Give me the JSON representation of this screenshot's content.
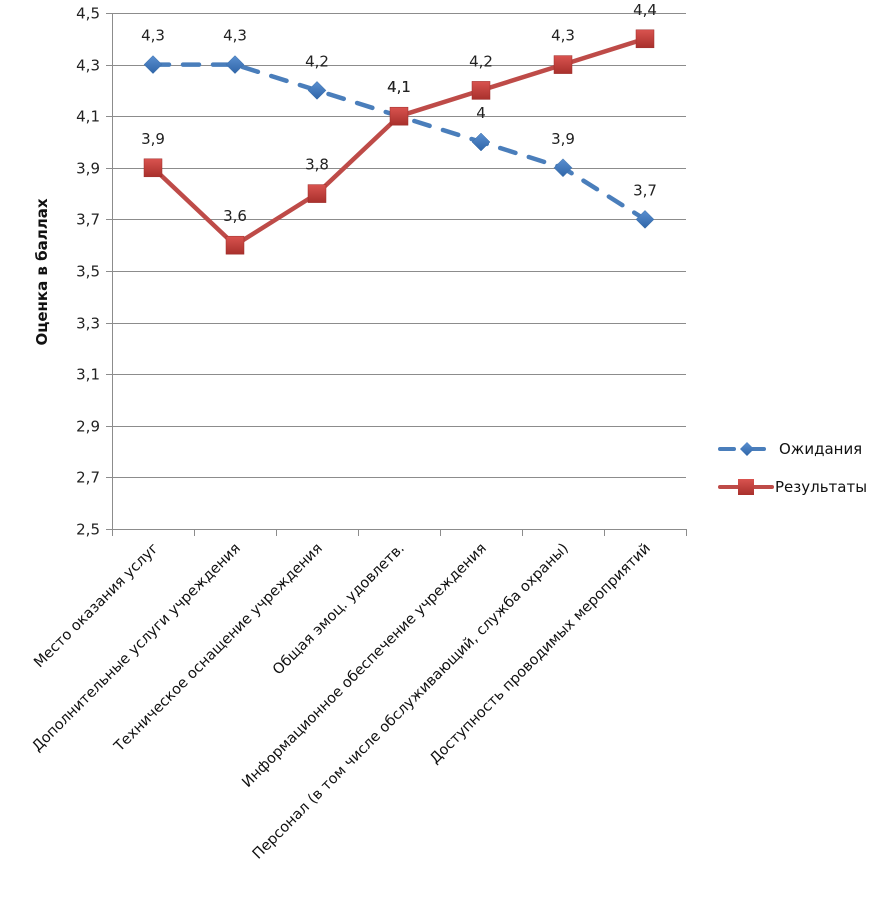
{
  "chart_data": {
    "type": "line",
    "title": "",
    "xlabel": "",
    "ylabel": "Оценка в баллах",
    "ylim": [
      2.5,
      4.5
    ],
    "ytick_step": 0.2,
    "yticks": [
      "4,5",
      "4,3",
      "4,1",
      "3,9",
      "3,7",
      "3,5",
      "3,3",
      "3,1",
      "2,9",
      "2,7",
      "2,5"
    ],
    "grid": true,
    "legend_position": "right",
    "categories": [
      "Место оказания услуг",
      "Дополнительные услуги учреждения",
      "Техническое оснащение учреждения",
      "Общая эмоц. удовлетв.",
      "Информационное обеспечение учреждения",
      "Персонал (в том числе обслуживающий, служба охраны)",
      "Доступность проводимых мероприятий"
    ],
    "series": [
      {
        "name": "Ожидания",
        "color": "#4a7ebb",
        "line_style": "dashed",
        "marker": "diamond",
        "values": [
          4.3,
          4.3,
          4.2,
          4.1,
          4.0,
          3.9,
          3.7
        ],
        "labels": [
          "4,3",
          "4,3",
          "4,2",
          "4,1",
          "4",
          "3,9",
          "3,7"
        ]
      },
      {
        "name": "Результаты",
        "color": "#be4b48",
        "line_style": "solid",
        "marker": "square",
        "values": [
          3.9,
          3.6,
          3.8,
          4.1,
          4.2,
          4.3,
          4.4
        ],
        "labels": [
          "3,9",
          "3,6",
          "3,8",
          "4,1",
          "4,2",
          "4,3",
          "4,4"
        ]
      }
    ]
  }
}
